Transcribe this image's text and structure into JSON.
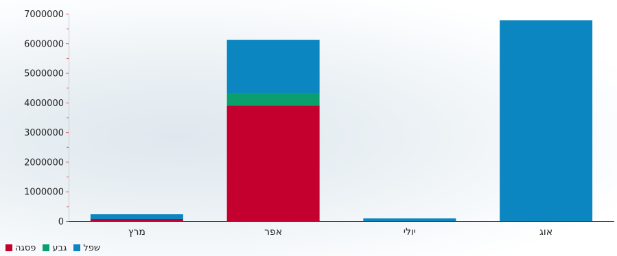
{
  "chart_data": {
    "type": "bar",
    "stacked": true,
    "categories": [
      "מרץ",
      "אפר",
      "יולי",
      "אוג"
    ],
    "series": [
      {
        "name": "פסגה",
        "color": "#c4002f",
        "values": [
          70000,
          3900000,
          0,
          0
        ]
      },
      {
        "name": "גבע",
        "color": "#0aa06e",
        "values": [
          0,
          420000,
          0,
          0
        ]
      },
      {
        "name": "שפל",
        "color": "#0b86c0",
        "values": [
          160000,
          1800000,
          90000,
          6780000
        ]
      }
    ],
    "yticks": [
      0,
      1000000,
      2000000,
      3000000,
      4000000,
      5000000,
      6000000,
      7000000
    ],
    "ylim": [
      0,
      7000000
    ],
    "legend_position": "bottom-left"
  }
}
